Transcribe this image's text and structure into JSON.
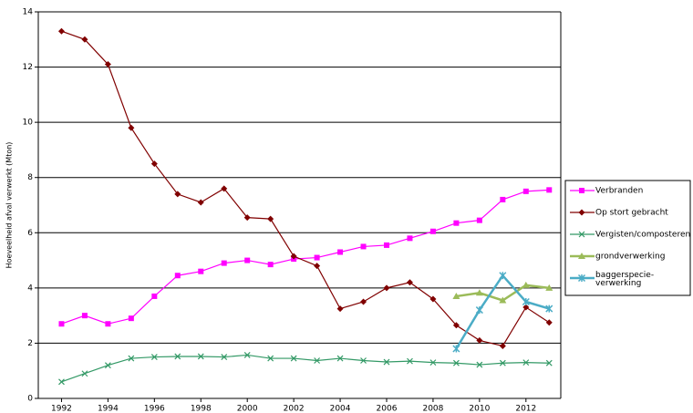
{
  "chart_data": {
    "type": "line",
    "y_label": "Hoeveelheid afval verwerkt (Mton)",
    "x": [
      1992,
      1993,
      1994,
      1995,
      1996,
      1997,
      1998,
      1999,
      2000,
      2001,
      2002,
      2003,
      2004,
      2005,
      2006,
      2007,
      2008,
      2009,
      2010,
      2011,
      2012,
      2013
    ],
    "xlim": [
      1991,
      2013.5
    ],
    "xticks": [
      1992,
      1994,
      1996,
      1998,
      2000,
      2002,
      2004,
      2006,
      2008,
      2010,
      2012
    ],
    "ylim": [
      0,
      14
    ],
    "yticks": [
      0,
      2,
      4,
      6,
      8,
      10,
      12,
      14
    ],
    "grid": true,
    "legend": "right",
    "series": [
      {
        "name": "Verbranden",
        "color": "#ff00ff",
        "marker": "square",
        "values": [
          2.7,
          3.0,
          2.7,
          2.9,
          3.7,
          4.45,
          4.6,
          4.9,
          5.0,
          4.85,
          5.05,
          5.1,
          5.3,
          5.5,
          5.55,
          5.8,
          6.05,
          6.35,
          6.45,
          7.2,
          7.5,
          7.55
        ]
      },
      {
        "name": "Op stort gebracht",
        "color": "#800000",
        "marker": "diamond",
        "values": [
          13.3,
          13.0,
          12.1,
          9.8,
          8.5,
          7.4,
          7.1,
          7.6,
          6.55,
          6.5,
          5.15,
          4.8,
          3.25,
          3.5,
          4.0,
          4.2,
          3.6,
          2.65,
          2.1,
          1.9,
          3.3,
          2.75
        ]
      },
      {
        "name": "Vergisten/composteren",
        "color": "#339966",
        "marker": "x",
        "values": [
          0.6,
          0.9,
          1.2,
          1.45,
          1.5,
          1.52,
          1.52,
          1.5,
          1.57,
          1.45,
          1.45,
          1.37,
          1.45,
          1.37,
          1.32,
          1.35,
          1.3,
          1.28,
          1.22,
          1.28,
          1.3,
          1.28
        ]
      },
      {
        "name": "grondverwerking",
        "color": "#9bbb59",
        "marker": "triangle",
        "values": [
          null,
          null,
          null,
          null,
          null,
          null,
          null,
          null,
          null,
          null,
          null,
          null,
          null,
          null,
          null,
          null,
          null,
          3.7,
          3.82,
          3.55,
          4.1,
          4.0
        ]
      },
      {
        "name": "baggerspecie-verwerking",
        "color": "#4bacc6",
        "marker": "star",
        "values": [
          null,
          null,
          null,
          null,
          null,
          null,
          null,
          null,
          null,
          null,
          null,
          null,
          null,
          null,
          null,
          null,
          null,
          1.8,
          3.2,
          4.45,
          3.5,
          3.25
        ]
      }
    ]
  }
}
